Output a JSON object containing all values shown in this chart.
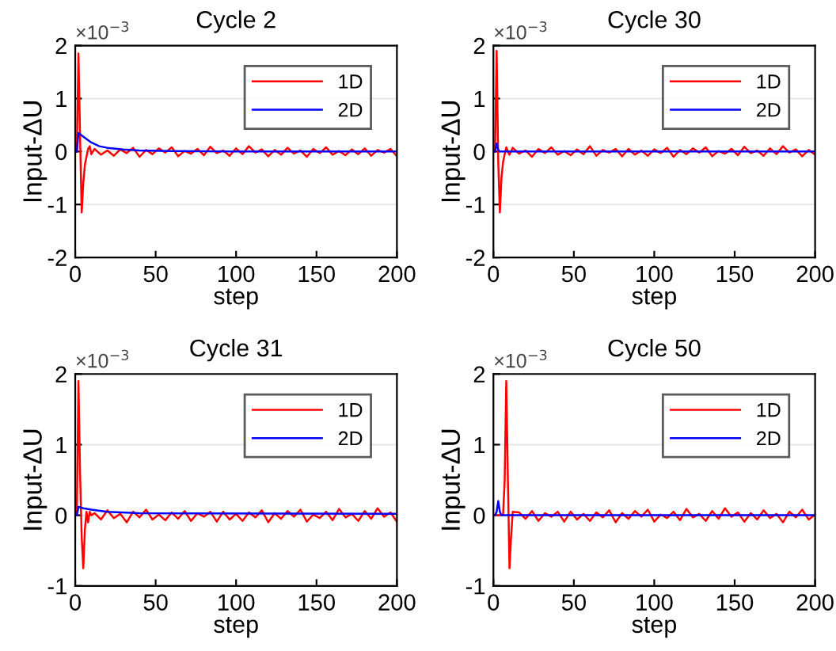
{
  "chart_data": [
    {
      "type": "line",
      "title": "Cycle 2",
      "xlabel": "step",
      "ylabel": "Input-ΔU",
      "annotations": [
        "×10$^{−3}$"
      ],
      "xlim": [
        0,
        200
      ],
      "xticks": [
        0,
        50,
        100,
        150,
        200
      ],
      "ylim": [
        -2,
        2
      ],
      "yticks": [
        -2,
        -1,
        0,
        1,
        2
      ],
      "grid": "y",
      "legend": "top right",
      "series": [
        {
          "name": "1D",
          "color": "#ff0000",
          "x": [
            1,
            2,
            3,
            4,
            5,
            6,
            7,
            8,
            9,
            10,
            12,
            16,
            20,
            24,
            28,
            32,
            36,
            40,
            44,
            48,
            52,
            56,
            60,
            64,
            68,
            72,
            76,
            80,
            84,
            88,
            92,
            96,
            100,
            104,
            108,
            112,
            116,
            120,
            124,
            128,
            132,
            136,
            140,
            144,
            148,
            152,
            156,
            160,
            164,
            168,
            172,
            176,
            180,
            184,
            188,
            192,
            196,
            200
          ],
          "values": [
            0,
            1.85,
            0.3,
            -1.15,
            -0.6,
            -0.25,
            -0.1,
            0.05,
            0.1,
            -0.05,
            0.05,
            -0.06,
            0.02,
            -0.08,
            0.04,
            -0.03,
            0.07,
            -0.1,
            0.03,
            -0.05,
            0.06,
            -0.02,
            0.08,
            -0.09,
            0.01,
            -0.04,
            0.05,
            -0.07,
            0.09,
            -0.03,
            0.02,
            -0.08,
            0.06,
            -0.05,
            0.1,
            -0.02,
            0.04,
            -0.09,
            0.03,
            -0.06,
            0.07,
            -0.04,
            0.02,
            -0.1,
            0.05,
            -0.03,
            0.08,
            -0.06,
            0.01,
            -0.07,
            0.04,
            -0.05,
            0.06,
            -0.08,
            0.03,
            -0.02,
            0.05,
            -0.09
          ]
        },
        {
          "name": "2D",
          "color": "#0000ff",
          "x": [
            1,
            2,
            5,
            10,
            15,
            20,
            30,
            40,
            60,
            100,
            200
          ],
          "values": [
            0,
            0.35,
            0.28,
            0.17,
            0.1,
            0.07,
            0.04,
            0.02,
            0.01,
            0,
            0
          ]
        }
      ]
    },
    {
      "type": "line",
      "title": "Cycle 30",
      "xlabel": "step",
      "ylabel": "Input-ΔU",
      "annotations": [
        "×10$^{−3}$"
      ],
      "xlim": [
        0,
        200
      ],
      "xticks": [
        0,
        50,
        100,
        150,
        200
      ],
      "ylim": [
        -2,
        2
      ],
      "yticks": [
        -2,
        -1,
        0,
        1,
        2
      ],
      "grid": "y",
      "legend": "top right",
      "series": [
        {
          "name": "1D",
          "color": "#ff0000",
          "x": [
            1,
            2,
            3,
            4,
            5,
            6,
            7,
            8,
            9,
            10,
            12,
            16,
            20,
            24,
            28,
            32,
            36,
            40,
            44,
            48,
            52,
            56,
            60,
            64,
            68,
            72,
            76,
            80,
            84,
            88,
            92,
            96,
            100,
            104,
            108,
            112,
            116,
            120,
            124,
            128,
            132,
            136,
            140,
            144,
            148,
            152,
            156,
            160,
            164,
            168,
            172,
            176,
            180,
            184,
            188,
            192,
            196,
            200
          ],
          "values": [
            0,
            1.9,
            -0.2,
            -1.15,
            -0.5,
            -0.2,
            -0.05,
            0.08,
            0,
            -0.06,
            0.07,
            -0.04,
            0.02,
            -0.1,
            0.05,
            -0.03,
            0.08,
            -0.06,
            0.01,
            -0.07,
            0.04,
            -0.05,
            0.1,
            -0.08,
            0.03,
            -0.02,
            0.05,
            -0.09,
            0.05,
            -0.06,
            0.02,
            -0.08,
            0.04,
            -0.03,
            0.07,
            -0.1,
            0.03,
            -0.05,
            0.06,
            -0.02,
            0.08,
            -0.09,
            0.01,
            -0.04,
            0.05,
            -0.07,
            0.09,
            -0.03,
            0.02,
            -0.08,
            0.06,
            -0.05,
            0.1,
            -0.02,
            0.04,
            -0.09,
            0.03,
            -0.06
          ]
        },
        {
          "name": "2D",
          "color": "#0000ff",
          "x": [
            1,
            2,
            3,
            4,
            10,
            200
          ],
          "values": [
            0,
            0.15,
            0.03,
            0,
            0,
            0
          ]
        }
      ]
    },
    {
      "type": "line",
      "title": "Cycle 31",
      "xlabel": "step",
      "ylabel": "Input-ΔU",
      "annotations": [
        "×10$^{−3}$"
      ],
      "xlim": [
        0,
        200
      ],
      "xticks": [
        0,
        50,
        100,
        150,
        200
      ],
      "ylim": [
        -1,
        2
      ],
      "yticks": [
        -1,
        0,
        1,
        2
      ],
      "grid": "y",
      "legend": "top right",
      "series": [
        {
          "name": "1D",
          "color": "#ff0000",
          "x": [
            1,
            2,
            3,
            4,
            5,
            6,
            7,
            8,
            9,
            10,
            12,
            16,
            20,
            24,
            28,
            32,
            36,
            40,
            44,
            48,
            52,
            56,
            60,
            64,
            68,
            72,
            76,
            80,
            84,
            88,
            92,
            96,
            100,
            104,
            108,
            112,
            116,
            120,
            124,
            128,
            132,
            136,
            140,
            144,
            148,
            152,
            156,
            160,
            164,
            168,
            172,
            176,
            180,
            184,
            188,
            192,
            196,
            200
          ],
          "values": [
            0,
            1.9,
            0.6,
            -0.3,
            -0.75,
            -0.2,
            0.05,
            -0.1,
            0.05,
            0,
            0.03,
            -0.06,
            0.07,
            -0.04,
            0.02,
            -0.1,
            0.05,
            -0.03,
            0.08,
            -0.06,
            0.01,
            -0.07,
            0.04,
            -0.05,
            0.06,
            -0.08,
            0.03,
            -0.02,
            0.05,
            -0.09,
            0.05,
            -0.06,
            0.02,
            -0.08,
            0.04,
            -0.03,
            0.07,
            -0.1,
            0.03,
            -0.05,
            0.06,
            -0.02,
            0.08,
            -0.09,
            0.01,
            -0.04,
            0.05,
            -0.07,
            0.09,
            -0.03,
            0.02,
            -0.08,
            0.06,
            -0.05,
            0.1,
            -0.02,
            0.04,
            -0.09
          ]
        },
        {
          "name": "2D",
          "color": "#0000ff",
          "x": [
            1,
            2,
            5,
            10,
            20,
            40,
            200
          ],
          "values": [
            0,
            0.12,
            0.1,
            0.08,
            0.05,
            0.03,
            0.02
          ]
        }
      ]
    },
    {
      "type": "line",
      "title": "Cycle 50",
      "xlabel": "step",
      "ylabel": "Input-ΔU",
      "annotations": [
        "×10$^{−3}$"
      ],
      "xlim": [
        0,
        200
      ],
      "xticks": [
        0,
        50,
        100,
        150,
        200
      ],
      "ylim": [
        -1,
        2
      ],
      "yticks": [
        -1,
        0,
        1,
        2
      ],
      "grid": "y",
      "legend": "top right",
      "series": [
        {
          "name": "1D",
          "color": "#ff0000",
          "x": [
            1,
            2,
            3,
            4,
            5,
            6,
            7,
            8,
            9,
            10,
            11,
            12,
            16,
            20,
            24,
            28,
            32,
            36,
            40,
            44,
            48,
            52,
            56,
            60,
            64,
            68,
            72,
            76,
            80,
            84,
            88,
            92,
            96,
            100,
            104,
            108,
            112,
            116,
            120,
            124,
            128,
            132,
            136,
            140,
            144,
            148,
            152,
            156,
            160,
            164,
            168,
            172,
            176,
            180,
            184,
            188,
            192,
            196,
            200
          ],
          "values": [
            0,
            0,
            0,
            0,
            0,
            0,
            0.5,
            1.9,
            0.5,
            -0.75,
            -0.3,
            0.05,
            0.04,
            -0.05,
            0.06,
            -0.08,
            0.03,
            -0.02,
            0.05,
            -0.09,
            0.05,
            -0.06,
            0.02,
            -0.08,
            0.04,
            -0.03,
            0.07,
            -0.1,
            0.03,
            -0.05,
            0.06,
            -0.02,
            0.08,
            -0.09,
            0.01,
            -0.04,
            0.05,
            -0.07,
            0.09,
            -0.03,
            0.02,
            -0.08,
            0.06,
            -0.05,
            0.1,
            -0.02,
            0.04,
            -0.09,
            0.03,
            -0.06,
            0.07,
            -0.04,
            0.02,
            -0.1,
            0.05,
            -0.03,
            0.08,
            -0.06,
            0.01
          ]
        },
        {
          "name": "2D",
          "color": "#0000ff",
          "x": [
            1,
            2,
            3,
            4,
            5,
            200
          ],
          "values": [
            0,
            0.05,
            0.2,
            0.05,
            0,
            0
          ]
        }
      ]
    }
  ]
}
